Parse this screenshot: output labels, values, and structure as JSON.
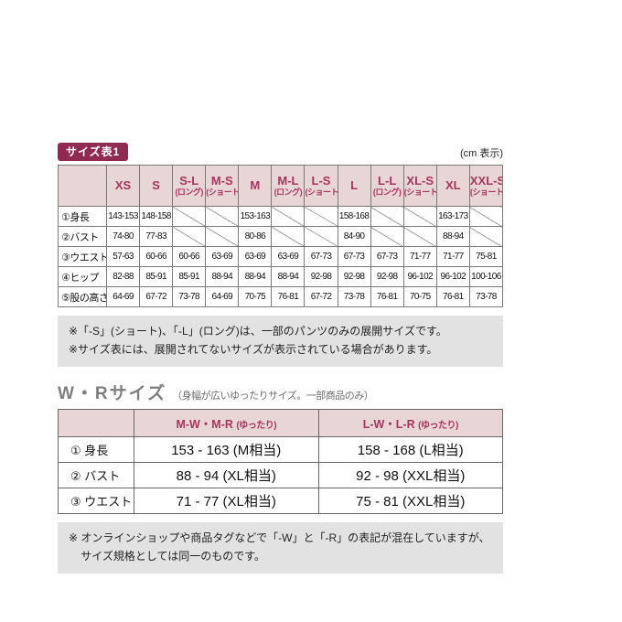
{
  "header": {
    "badge": "サイズ表1",
    "unit": "(cm 表示)"
  },
  "size_table": {
    "columns": [
      {
        "label": "XS",
        "sub": ""
      },
      {
        "label": "S",
        "sub": ""
      },
      {
        "label": "S-L",
        "sub": "(ロング)"
      },
      {
        "label": "M-S",
        "sub": "(ショート)"
      },
      {
        "label": "M",
        "sub": ""
      },
      {
        "label": "M-L",
        "sub": "(ロング)"
      },
      {
        "label": "L-S",
        "sub": "(ショート)"
      },
      {
        "label": "L",
        "sub": ""
      },
      {
        "label": "L-L",
        "sub": "(ロング)"
      },
      {
        "label": "XL-S",
        "sub": "(ショート)"
      },
      {
        "label": "XL",
        "sub": ""
      },
      {
        "label": "XXL-S",
        "sub": "(ショート)"
      }
    ],
    "rows": [
      {
        "label": "①身長",
        "values": [
          "143-153",
          "148-158",
          null,
          null,
          "153-163",
          null,
          null,
          "158-168",
          null,
          null,
          "163-173",
          null
        ]
      },
      {
        "label": "②バスト",
        "values": [
          "74-80",
          "77-83",
          null,
          null,
          "80-86",
          null,
          null,
          "84-90",
          null,
          null,
          "88-94",
          null
        ]
      },
      {
        "label": "③ウエスト",
        "values": [
          "57-63",
          "60-66",
          "60-66",
          "63-69",
          "63-69",
          "63-69",
          "67-73",
          "67-73",
          "67-73",
          "71-77",
          "71-77",
          "75-81"
        ]
      },
      {
        "label": "④ヒップ",
        "values": [
          "82-88",
          "85-91",
          "85-91",
          "88-94",
          "88-94",
          "88-94",
          "92-98",
          "92-98",
          "92-98",
          "96-102",
          "96-102",
          "100-106"
        ]
      },
      {
        "label": "⑤股の高さ",
        "values": [
          "64-69",
          "67-72",
          "73-78",
          "64-69",
          "70-75",
          "76-81",
          "67-72",
          "73-78",
          "76-81",
          "70-75",
          "76-81",
          "73-78"
        ]
      }
    ]
  },
  "notes_main": [
    "※「-S」(ショート)、「-L」(ロング)は、一部のパンツのみの展開サイズです。",
    "※サイズ表には、展開されてないサイズが表示されている場合があります。"
  ],
  "wr_section": {
    "heading": "W・Rサイズ",
    "subheading": "（身幅が広いゆったりサイズ。一部商品のみ）",
    "columns": [
      {
        "label": "M-W・M-R",
        "sub": "(ゆったり)"
      },
      {
        "label": "L-W・L-R",
        "sub": "(ゆったり)"
      }
    ],
    "rows": [
      {
        "label": "① 身長",
        "values": [
          "153 - 163 (M相当)",
          "158 - 168 (L相当)"
        ]
      },
      {
        "label": "② バスト",
        "values": [
          "88 - 94 (XL相当)",
          "92 - 98 (XXL相当)"
        ]
      },
      {
        "label": "③ ウエスト",
        "values": [
          "71 - 77 (XL相当)",
          "75 - 81 (XXL相当)"
        ]
      }
    ]
  },
  "note_wr": "※ オンラインショップや商品タグなどで「-W」と「-R」の表記が混在していますが、サイズ規格としては同一のものです。",
  "colors": {
    "badge_bg": "#8f2b50",
    "header_bg": "#e8d5d6",
    "header_text": "#a6355f",
    "note_bg": "#e2e2e2",
    "heading_gray": "#7f7f7f"
  }
}
